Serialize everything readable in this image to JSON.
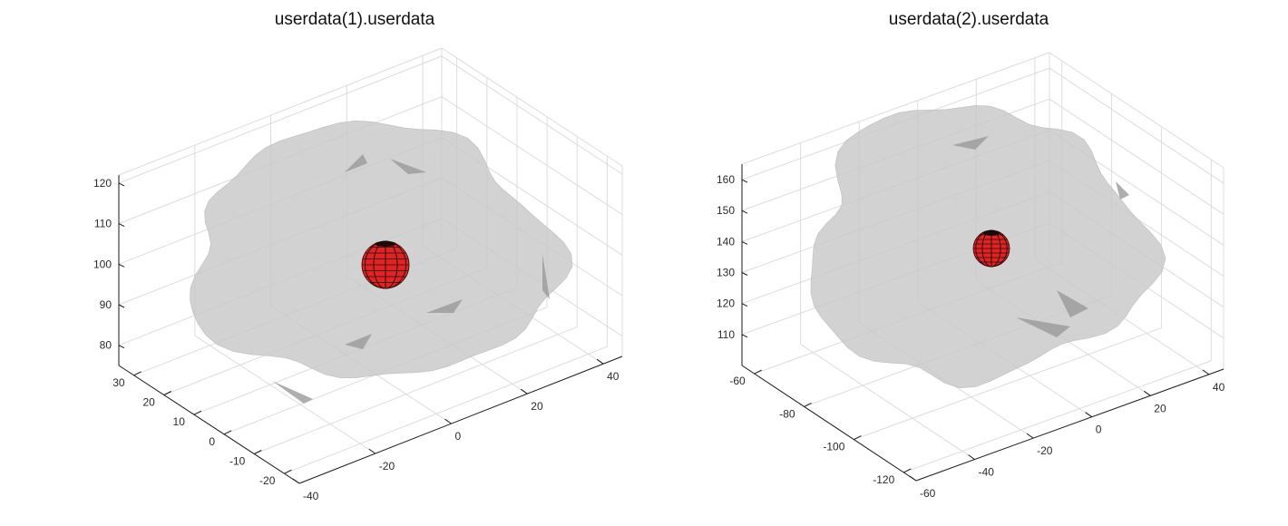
{
  "colors": {
    "surface": "#c8c8c8",
    "sphere": "#e02424",
    "sphere_mesh": "#2a0a0a",
    "grid": "#dcdcdc",
    "axis": "#1a1a1a"
  },
  "chart_data": [
    {
      "type": "3d-surface",
      "title": "userdata(1).userdata",
      "grid": true,
      "x_ticks": [
        -40,
        -20,
        0,
        20,
        40
      ],
      "y_ticks": [
        30,
        20,
        10,
        0,
        -10,
        -20
      ],
      "z_ticks": [
        120,
        110,
        100,
        90,
        80
      ],
      "xlim": [
        -40,
        45
      ],
      "ylim": [
        -25,
        35
      ],
      "zlim": [
        75,
        122
      ],
      "objects": [
        {
          "name": "surface",
          "kind": "translucent-isosurface"
        },
        {
          "name": "sphere",
          "kind": "sphere"
        }
      ]
    },
    {
      "type": "3d-surface",
      "title": "userdata(2).userdata",
      "grid": true,
      "x_ticks": [
        -60,
        -40,
        -20,
        0,
        20,
        40
      ],
      "y_ticks": [
        -60,
        -80,
        -100,
        -120
      ],
      "z_ticks": [
        160,
        150,
        140,
        130,
        120,
        110
      ],
      "xlim": [
        -60,
        45
      ],
      "ylim": [
        -125,
        -55
      ],
      "zlim": [
        100,
        165
      ],
      "objects": [
        {
          "name": "surface",
          "kind": "translucent-isosurface"
        },
        {
          "name": "sphere",
          "kind": "sphere"
        }
      ]
    }
  ]
}
